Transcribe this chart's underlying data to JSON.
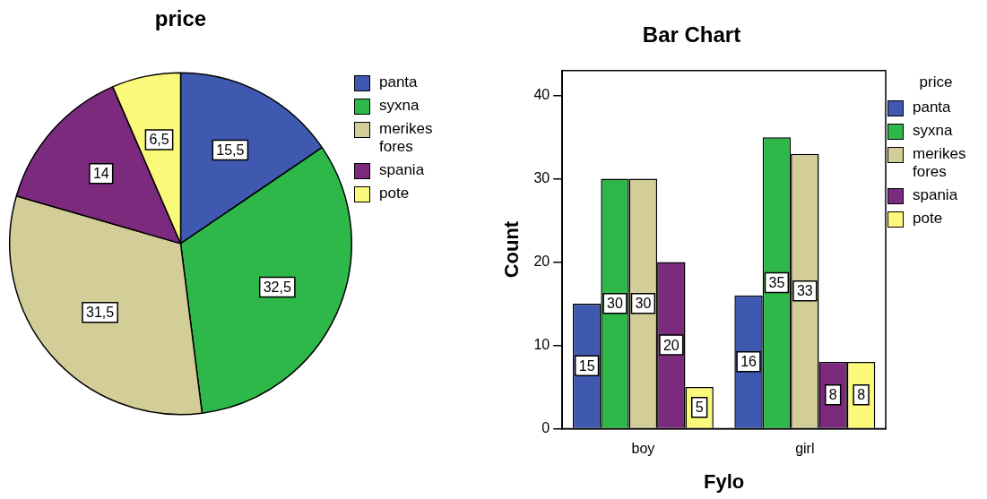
{
  "chart_data": [
    {
      "type": "pie",
      "title": "price",
      "categories": [
        "panta",
        "syxna",
        "merikes fores",
        "spania",
        "pote"
      ],
      "values": [
        15.5,
        32.5,
        31.5,
        14,
        6.5
      ],
      "value_labels": [
        "15,5",
        "32,5",
        "31,5",
        "14",
        "6,5"
      ],
      "colors": [
        "#3f58b0",
        "#2fb84a",
        "#d3cd98",
        "#7b2a7e",
        "#fbf97a"
      ],
      "legend": "right"
    },
    {
      "type": "bar",
      "title": "Bar Chart",
      "xlabel": "Fylo",
      "ylabel": "Count",
      "legend_title": "price",
      "legend": "right",
      "categories": [
        "boy",
        "girl"
      ],
      "ylim": [
        0,
        43
      ],
      "yticks": [
        0,
        10,
        20,
        30,
        40
      ],
      "grid": false,
      "data_labels": true,
      "series": [
        {
          "name": "panta",
          "color": "#3f58b0",
          "values": [
            15,
            16
          ]
        },
        {
          "name": "syxna",
          "color": "#2fb84a",
          "values": [
            30,
            35
          ]
        },
        {
          "name": "merikes fores",
          "color": "#d3cd98",
          "values": [
            30,
            33
          ]
        },
        {
          "name": "spania",
          "color": "#7b2a7e",
          "values": [
            20,
            8
          ]
        },
        {
          "name": "pote",
          "color": "#fbf97a",
          "values": [
            5,
            8
          ]
        }
      ]
    }
  ]
}
